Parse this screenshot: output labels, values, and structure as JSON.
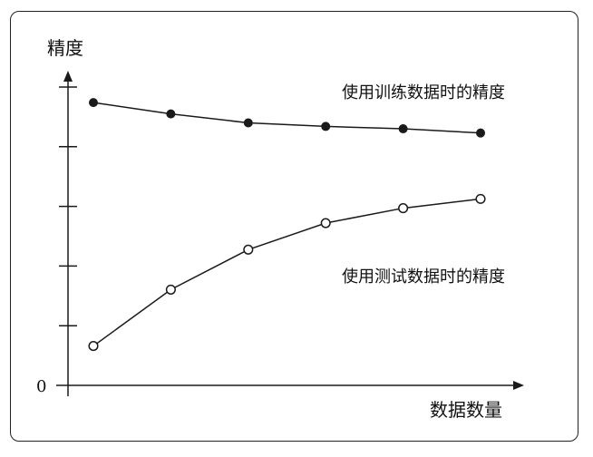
{
  "chart_data": {
    "type": "line",
    "ylabel": "精度",
    "xlabel": "数据数量",
    "origin_label": "0",
    "x": [
      1,
      2,
      3,
      4,
      5,
      6
    ],
    "ylim": [
      0,
      1.0
    ],
    "y_ticks": 5,
    "series": [
      {
        "name": "使用训练数据时的精度",
        "marker": "filled",
        "values": [
          0.948,
          0.91,
          0.88,
          0.868,
          0.86,
          0.846
        ]
      },
      {
        "name": "使用测试数据时的精度",
        "marker": "open",
        "values": [
          0.132,
          0.321,
          0.455,
          0.544,
          0.594,
          0.625
        ]
      }
    ]
  },
  "colors": {
    "line": "#1a1a1a",
    "marker_fill": "#1a1a1a",
    "background": "#ffffff"
  }
}
